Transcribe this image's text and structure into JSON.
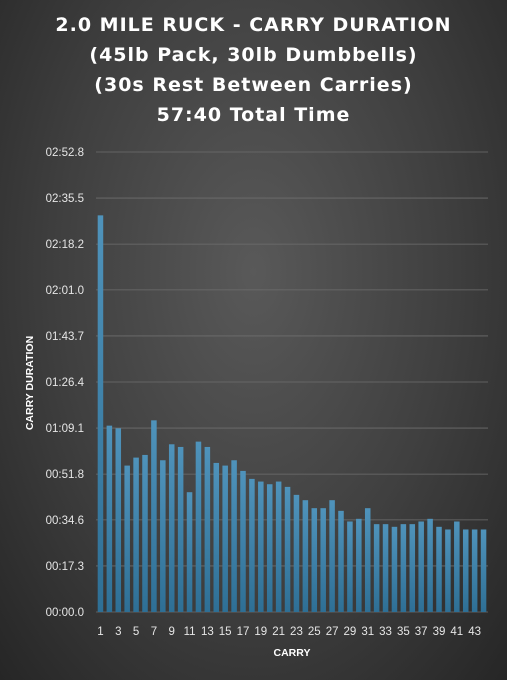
{
  "chart_data": {
    "type": "bar",
    "title": [
      "2.0 MILE RUCK - CARRY DURATION",
      "(45lb Pack, 30lb Dumbbells)",
      "(30s Rest Between Carries)",
      "57:40 Total Time"
    ],
    "xlabel": "CARRY",
    "ylabel": "CARRY DURATION",
    "categories": [
      1,
      2,
      3,
      4,
      5,
      6,
      7,
      8,
      9,
      10,
      11,
      12,
      13,
      14,
      15,
      16,
      17,
      18,
      19,
      20,
      21,
      22,
      23,
      24,
      25,
      26,
      27,
      28,
      29,
      30,
      31,
      32,
      33,
      34,
      35,
      36,
      37,
      38,
      39,
      40,
      41,
      42,
      43,
      44
    ],
    "x_tick_labels": [
      "1",
      "3",
      "5",
      "7",
      "9",
      "11",
      "13",
      "15",
      "17",
      "19",
      "21",
      "23",
      "25",
      "27",
      "29",
      "31",
      "33",
      "35",
      "37",
      "39",
      "41",
      "43"
    ],
    "values_seconds": [
      149,
      70,
      69,
      55,
      58,
      59,
      72,
      57,
      63,
      62,
      45,
      64,
      62,
      56,
      55,
      57,
      53,
      50,
      49,
      48,
      49,
      47,
      44,
      42,
      39,
      39,
      42,
      38,
      34,
      35,
      39,
      33,
      33,
      32,
      33,
      33,
      34,
      35,
      32,
      31,
      34,
      31,
      31,
      31
    ],
    "y_ticks_seconds": [
      0,
      17.3,
      34.6,
      51.8,
      69.1,
      86.4,
      103.7,
      121.0,
      138.2,
      155.5,
      172.8
    ],
    "y_tick_labels": [
      "00:00.0",
      "00:17.3",
      "00:34.6",
      "00:51.8",
      "01:09.1",
      "01:26.4",
      "01:43.7",
      "02:01.0",
      "02:18.2",
      "02:35.5",
      "02:52.8"
    ],
    "ylim_seconds": [
      0,
      172.8
    ],
    "grid": true,
    "legend": "none",
    "bar_color": "#2e6f95",
    "bar_highlight": "#4f93bb",
    "grid_color": "#6e6e6e"
  }
}
